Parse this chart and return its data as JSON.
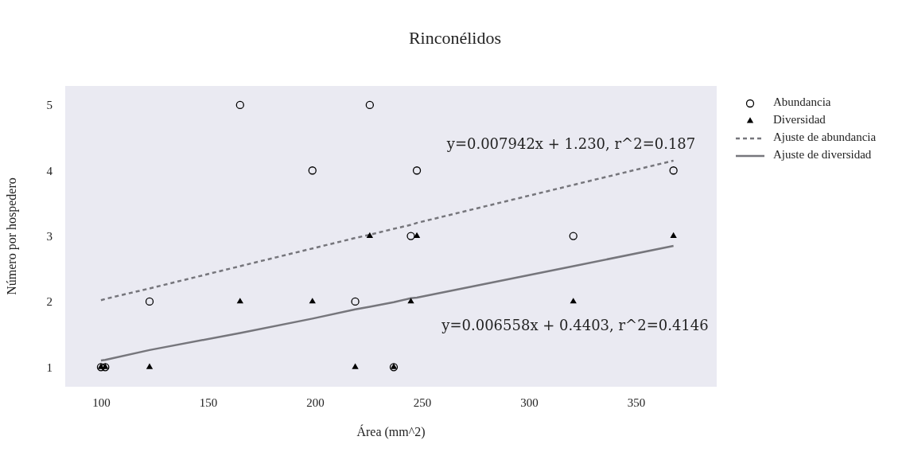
{
  "chart_data": {
    "type": "scatter",
    "title": "Rinconélidos",
    "xlabel": "Área (mm^2)",
    "ylabel": "Número por hospedero",
    "xlim": [
      83.3,
      387.7
    ],
    "xticks": [
      100,
      150,
      200,
      250,
      300,
      350
    ],
    "ylim": [
      0.7,
      5.29
    ],
    "yticks": [
      1,
      2,
      3,
      4,
      5
    ],
    "x": [
      100,
      102,
      122.7,
      165,
      198.8,
      218.8,
      225.6,
      236.8,
      244.8,
      247.6,
      320.7,
      367.5
    ],
    "series": [
      {
        "name": "Abundancia",
        "marker": "circle",
        "color": "#000000",
        "values": [
          1,
          1,
          2,
          5,
          4,
          2,
          5,
          1,
          3,
          4,
          3,
          4
        ]
      },
      {
        "name": "Diversidad",
        "marker": "triangle",
        "color": "#000000",
        "values": [
          1,
          1,
          1,
          2,
          2,
          1,
          3,
          1,
          2,
          3,
          2,
          3
        ]
      },
      {
        "name": "Ajuste de abundancia",
        "type": "line",
        "line_style": "dashed",
        "color": "#76767c",
        "values": [
          2.02,
          2.04,
          2.2,
          2.54,
          2.81,
          2.97,
          3.02,
          3.11,
          3.17,
          3.2,
          3.78,
          4.15
        ]
      },
      {
        "name": "Ajuste de diversidad",
        "type": "line",
        "line_style": "solid",
        "color": "#76767c",
        "values": [
          1.1,
          1.11,
          1.26,
          1.52,
          1.74,
          1.88,
          1.92,
          1.99,
          2.05,
          2.06,
          2.54,
          2.85
        ]
      }
    ],
    "annotations": [
      "y=0.007942x + 1.230, r^2=0.187",
      "y=0.006558x + 0.4403, r^2=0.4146"
    ],
    "legend": "right"
  }
}
